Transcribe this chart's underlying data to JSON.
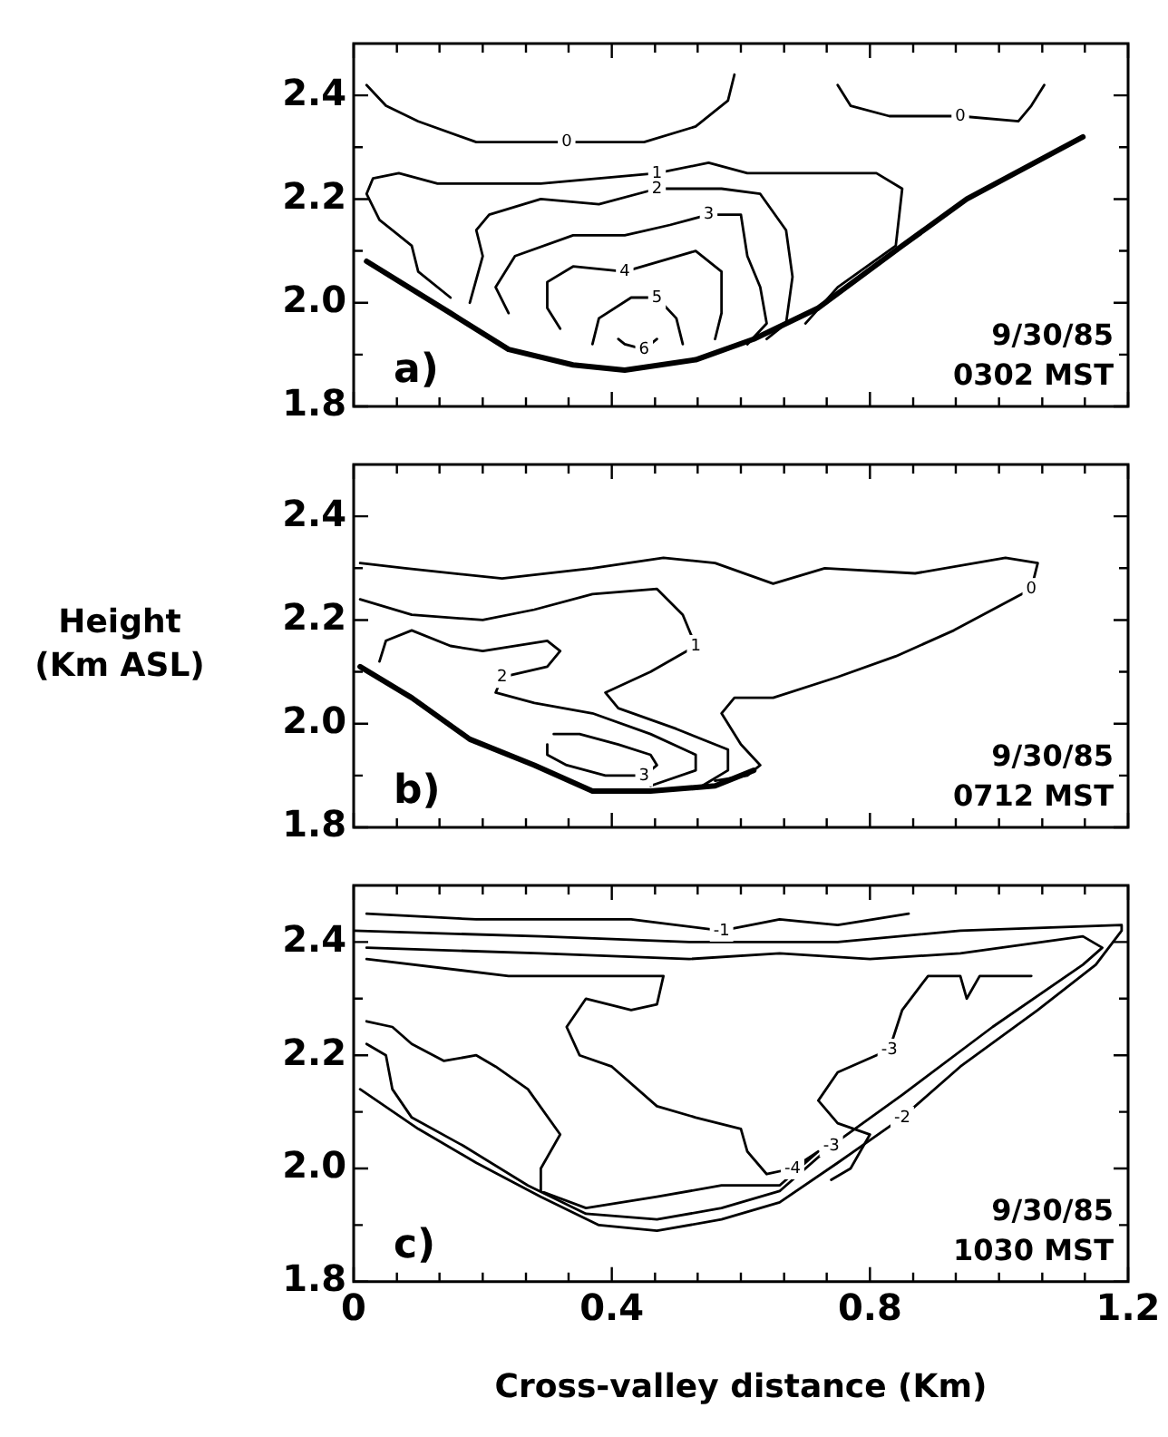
{
  "chart_data": [
    {
      "type": "line",
      "xlim": [
        0,
        1.2
      ],
      "ylim": [
        1.8,
        2.5
      ],
      "tick_labels": "y",
      "marker": "none",
      "line_style": "solid",
      "grid": false,
      "legend": false,
      "xticks": [
        0,
        {
          "value": 0.067,
          "label": null
        },
        {
          "value": 0.133,
          "label": null
        },
        {
          "value": 0.2,
          "label": null
        },
        {
          "value": 0.267,
          "label": null
        },
        {
          "value": 0.333,
          "label": null
        },
        0.4,
        {
          "value": 0.467,
          "label": null
        },
        {
          "value": 0.533,
          "label": null
        },
        {
          "value": 0.6,
          "label": null
        },
        {
          "value": 0.667,
          "label": null
        },
        {
          "value": 0.733,
          "label": null
        },
        0.8,
        {
          "value": 0.867,
          "label": null
        },
        {
          "value": 0.933,
          "label": null
        },
        {
          "value": 1,
          "label": null
        },
        {
          "value": 1.067,
          "label": null
        },
        {
          "value": 1.133,
          "label": null
        },
        1.2
      ],
      "yticks": [
        1.8,
        {
          "value": 1.9,
          "label": null
        },
        {
          "value": 2,
          "label": "2.0"
        },
        {
          "value": 2.1,
          "label": null
        },
        2.2,
        {
          "value": 2.3,
          "label": null
        },
        2.4
      ],
      "annotations": [
        "a)",
        "9/30/85",
        "0302 MST"
      ],
      "series": [
        {
          "color": "#000000",
          "x": [
            0.02,
            0.15,
            0.24,
            0.34,
            0.42,
            0.53,
            0.62,
            0.72,
            0.85,
            0.95,
            1.13
          ],
          "values": [
            2.08,
            1.98,
            1.91,
            1.88,
            1.87,
            1.89,
            1.93,
            1.99,
            2.11,
            2.2,
            2.32
          ]
        },
        {
          "name": "0",
          "color": "#000000",
          "x": [
            0.02,
            0.05,
            0.1,
            0.19,
            0.33,
            0.45,
            0.53,
            0.58,
            0.59
          ],
          "values": [
            2.42,
            2.38,
            2.35,
            2.31,
            2.31,
            2.31,
            2.34,
            2.39,
            2.44
          ]
        },
        {
          "name": "0",
          "color": "#000000",
          "x": [
            0.75,
            0.77,
            0.83,
            0.94,
            1.03,
            1.05,
            1.07
          ],
          "values": [
            2.42,
            2.38,
            2.36,
            2.36,
            2.35,
            2.38,
            2.42
          ]
        },
        {
          "name": "1",
          "color": "#000000",
          "x": [
            0.15,
            0.1,
            0.09,
            0.04,
            0.02,
            0.03,
            0.07,
            0.13,
            0.29,
            0.47,
            0.55,
            0.61,
            0.71,
            0.81,
            0.85,
            0.84,
            0.75,
            0.7
          ],
          "values": [
            2.01,
            2.06,
            2.11,
            2.16,
            2.21,
            2.24,
            2.25,
            2.23,
            2.23,
            2.25,
            2.27,
            2.25,
            2.25,
            2.25,
            2.22,
            2.11,
            2.03,
            1.96
          ]
        },
        {
          "name": "2",
          "color": "#000000",
          "x": [
            0.18,
            0.2,
            0.19,
            0.21,
            0.29,
            0.38,
            0.47,
            0.57,
            0.63,
            0.67,
            0.68,
            0.67,
            0.64
          ],
          "values": [
            2,
            2.09,
            2.14,
            2.17,
            2.2,
            2.19,
            2.22,
            2.22,
            2.21,
            2.14,
            2.05,
            1.96,
            1.93
          ]
        },
        {
          "name": "3",
          "color": "#000000",
          "x": [
            0.24,
            0.22,
            0.25,
            0.34,
            0.42,
            0.49,
            0.55,
            0.6,
            0.61,
            0.63,
            0.64,
            0.61
          ],
          "values": [
            1.98,
            2.03,
            2.09,
            2.13,
            2.13,
            2.15,
            2.17,
            2.17,
            2.09,
            2.03,
            1.96,
            1.92
          ]
        },
        {
          "name": "4",
          "color": "#000000",
          "x": [
            0.32,
            0.3,
            0.3,
            0.34,
            0.42,
            0.53,
            0.57,
            0.57,
            0.56
          ],
          "values": [
            1.95,
            1.99,
            2.04,
            2.07,
            2.06,
            2.1,
            2.06,
            1.98,
            1.93
          ]
        },
        {
          "name": "5",
          "color": "#000000",
          "x": [
            0.37,
            0.38,
            0.43,
            0.47,
            0.5,
            0.51
          ],
          "values": [
            1.92,
            1.97,
            2.01,
            2.01,
            1.97,
            1.92
          ]
        },
        {
          "name": "6",
          "color": "#000000",
          "x": [
            0.41,
            0.42,
            0.45,
            0.47
          ],
          "values": [
            1.93,
            1.92,
            1.91,
            1.93
          ]
        }
      ]
    },
    {
      "type": "line",
      "xlim": [
        0,
        1.2
      ],
      "ylim": [
        1.8,
        2.5
      ],
      "tick_labels": "y",
      "marker": "none",
      "line_style": "solid",
      "grid": false,
      "legend": false,
      "ylabel": "Height\n(Km ASL)",
      "xticks": [
        0,
        {
          "value": 0.067,
          "label": null
        },
        {
          "value": 0.133,
          "label": null
        },
        {
          "value": 0.2,
          "label": null
        },
        {
          "value": 0.267,
          "label": null
        },
        {
          "value": 0.333,
          "label": null
        },
        0.4,
        {
          "value": 0.467,
          "label": null
        },
        {
          "value": 0.533,
          "label": null
        },
        {
          "value": 0.6,
          "label": null
        },
        {
          "value": 0.667,
          "label": null
        },
        {
          "value": 0.733,
          "label": null
        },
        0.8,
        {
          "value": 0.867,
          "label": null
        },
        {
          "value": 0.933,
          "label": null
        },
        {
          "value": 1,
          "label": null
        },
        {
          "value": 1.067,
          "label": null
        },
        {
          "value": 1.133,
          "label": null
        },
        1.2
      ],
      "yticks": [
        1.8,
        {
          "value": 1.9,
          "label": null
        },
        {
          "value": 2,
          "label": "2.0"
        },
        {
          "value": 2.1,
          "label": null
        },
        2.2,
        {
          "value": 2.3,
          "label": null
        },
        2.4
      ],
      "annotations": [
        "b)",
        "9/30/85",
        "0712 MST"
      ],
      "series": [
        {
          "color": "#000000",
          "x": [
            0.01,
            0.09,
            0.18,
            0.28,
            0.37,
            0.46,
            0.56,
            0.62
          ],
          "values": [
            2.11,
            2.05,
            1.97,
            1.92,
            1.87,
            1.87,
            1.88,
            1.91
          ]
        },
        {
          "name": "0",
          "color": "#000000",
          "x": [
            0.01,
            0.08,
            0.23,
            0.37,
            0.48,
            0.56,
            0.65,
            0.73,
            0.87,
            1.01,
            1.06,
            1.05,
            0.93,
            0.84,
            0.75,
            0.65,
            0.59,
            0.57,
            0.6,
            0.63,
            0.61,
            0.56
          ],
          "values": [
            2.31,
            2.3,
            2.28,
            2.3,
            2.32,
            2.31,
            2.27,
            2.3,
            2.29,
            2.32,
            2.31,
            2.26,
            2.18,
            2.13,
            2.09,
            2.05,
            2.05,
            2.02,
            1.96,
            1.92,
            1.9,
            1.89
          ]
        },
        {
          "name": "1",
          "color": "#000000",
          "x": [
            0.01,
            0.09,
            0.2,
            0.28,
            0.37,
            0.47,
            0.51,
            0.53,
            0.46,
            0.39,
            0.41,
            0.5,
            0.58,
            0.58,
            0.54
          ],
          "values": [
            2.24,
            2.21,
            2.2,
            2.22,
            2.25,
            2.26,
            2.21,
            2.15,
            2.1,
            2.06,
            2.03,
            1.99,
            1.95,
            1.91,
            1.88
          ]
        },
        {
          "name": "2",
          "color": "#000000",
          "x": [
            0.04,
            0.05,
            0.09,
            0.15,
            0.2,
            0.3,
            0.32,
            0.3,
            0.23,
            0.22,
            0.28,
            0.37,
            0.46,
            0.53,
            0.53,
            0.46
          ],
          "values": [
            2.12,
            2.16,
            2.18,
            2.15,
            2.14,
            2.16,
            2.14,
            2.11,
            2.09,
            2.06,
            2.04,
            2.02,
            1.98,
            1.94,
            1.91,
            1.88
          ]
        },
        {
          "name": "3",
          "color": "#000000",
          "x": [
            0.31,
            0.35,
            0.41,
            0.46,
            0.47,
            0.45,
            0.39,
            0.33,
            0.3,
            0.3
          ],
          "values": [
            1.98,
            1.98,
            1.96,
            1.94,
            1.92,
            1.9,
            1.9,
            1.92,
            1.94,
            1.96
          ]
        }
      ]
    },
    {
      "type": "line",
      "xlim": [
        0,
        1.2
      ],
      "ylim": [
        1.8,
        2.5
      ],
      "marker": "none",
      "line_style": "solid",
      "grid": false,
      "legend": false,
      "xlabel": "Cross-valley distance (Km)",
      "xticks": [
        0,
        {
          "value": 0.067,
          "label": null
        },
        {
          "value": 0.133,
          "label": null
        },
        {
          "value": 0.2,
          "label": null
        },
        {
          "value": 0.267,
          "label": null
        },
        {
          "value": 0.333,
          "label": null
        },
        0.4,
        {
          "value": 0.467,
          "label": null
        },
        {
          "value": 0.533,
          "label": null
        },
        {
          "value": 0.6,
          "label": null
        },
        {
          "value": 0.667,
          "label": null
        },
        {
          "value": 0.733,
          "label": null
        },
        0.8,
        {
          "value": 0.867,
          "label": null
        },
        {
          "value": 0.933,
          "label": null
        },
        {
          "value": 1,
          "label": null
        },
        {
          "value": 1.067,
          "label": null
        },
        {
          "value": 1.133,
          "label": null
        },
        1.2
      ],
      "yticks": [
        1.8,
        {
          "value": 1.9,
          "label": null
        },
        {
          "value": 2,
          "label": "2.0"
        },
        {
          "value": 2.1,
          "label": null
        },
        2.2,
        {
          "value": 2.3,
          "label": null
        },
        2.4
      ],
      "annotations": [
        "c)",
        "9/30/85",
        "1030 MST"
      ],
      "series": [
        {
          "name": "-1",
          "color": "#000000",
          "x": [
            0.02,
            0.19,
            0.43,
            0.57,
            0.66,
            0.75,
            0.86
          ],
          "values": [
            2.45,
            2.44,
            2.44,
            2.42,
            2.44,
            2.43,
            2.45
          ]
        },
        {
          "name": "-2",
          "color": "#000000",
          "x": [
            0,
            0.29,
            0.52,
            0.75,
            0.94,
            1.19,
            1.19,
            1.15,
            1.06,
            0.94,
            0.85,
            0.75,
            0.66,
            0.57,
            0.47,
            0.38,
            0.29,
            0.19,
            0.1,
            0.01
          ],
          "values": [
            2.42,
            2.41,
            2.4,
            2.4,
            2.42,
            2.43,
            2.42,
            2.36,
            2.28,
            2.18,
            2.09,
            2.01,
            1.94,
            1.91,
            1.89,
            1.9,
            1.95,
            2.01,
            2.07,
            2.14
          ]
        },
        {
          "name": "-3",
          "color": "#000000",
          "x": [
            0.02,
            0.29,
            0.52,
            0.66,
            0.8,
            0.94,
            1.13,
            1.16,
            1.13,
            0.99,
            0.85,
            0.74,
            0.66,
            0.57,
            0.47,
            0.36,
            0.27,
            0.17,
            0.09,
            0.06,
            0.05,
            0.02
          ],
          "values": [
            2.39,
            2.38,
            2.37,
            2.38,
            2.37,
            2.38,
            2.41,
            2.39,
            2.36,
            2.25,
            2.13,
            2.04,
            1.96,
            1.93,
            1.91,
            1.92,
            1.97,
            2.04,
            2.09,
            2.14,
            2.2,
            2.22
          ]
        },
        {
          "name": "-3",
          "color": "#000000",
          "x": [
            1.05,
            0.97,
            0.95,
            0.94,
            0.89,
            0.85,
            0.83,
            0.75,
            0.72,
            0.75,
            0.8,
            0.77,
            0.74
          ],
          "values": [
            2.34,
            2.34,
            2.3,
            2.34,
            2.34,
            2.28,
            2.21,
            2.17,
            2.12,
            2.08,
            2.06,
            2,
            1.98
          ]
        },
        {
          "name": "-4",
          "color": "#000000",
          "x": [
            0.02,
            0.24,
            0.43,
            0.48,
            0.47,
            0.43,
            0.36,
            0.33,
            0.35,
            0.4,
            0.47,
            0.53,
            0.6,
            0.61,
            0.64,
            0.68,
            0.72,
            0.66,
            0.57,
            0.47,
            0.36,
            0.29,
            0.29,
            0.32,
            0.27,
            0.22,
            0.19,
            0.14,
            0.09,
            0.06,
            0.02
          ],
          "values": [
            2.37,
            2.34,
            2.34,
            2.34,
            2.29,
            2.28,
            2.3,
            2.25,
            2.2,
            2.18,
            2.11,
            2.09,
            2.07,
            2.03,
            1.99,
            2,
            2.03,
            1.97,
            1.97,
            1.95,
            1.93,
            1.96,
            2,
            2.06,
            2.14,
            2.18,
            2.2,
            2.19,
            2.22,
            2.25,
            2.26
          ]
        }
      ]
    }
  ]
}
